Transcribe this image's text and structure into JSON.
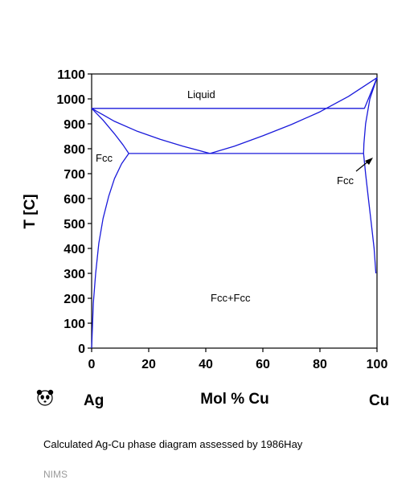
{
  "chart_data": {
    "type": "line",
    "title": "",
    "xlabel": "Mol % Cu",
    "ylabel": "T [C]",
    "element_left": "Ag",
    "element_right": "Cu",
    "xlim": [
      0,
      100
    ],
    "ylim": [
      0,
      1100
    ],
    "x_ticks": [
      0,
      20,
      40,
      60,
      80,
      100
    ],
    "y_ticks": [
      0,
      100,
      200,
      300,
      400,
      500,
      600,
      700,
      800,
      900,
      1000,
      1100
    ],
    "series_color": "#1a1adb",
    "region_labels": [
      "Liquid",
      "Fcc",
      "Fcc",
      "Fcc+Fcc"
    ],
    "series": [
      {
        "values": [
          [
            0,
            962
          ],
          [
            8,
            910
          ],
          [
            16,
            870
          ],
          [
            24,
            838
          ],
          [
            32,
            810
          ],
          [
            41.5,
            781
          ]
        ]
      },
      {
        "values": [
          [
            41.5,
            781
          ],
          [
            50,
            810
          ],
          [
            60,
            852
          ],
          [
            70,
            897
          ],
          [
            80,
            948
          ],
          [
            90,
            1010
          ],
          [
            100,
            1085
          ]
        ]
      },
      {
        "values": [
          [
            0,
            962
          ],
          [
            4,
            915
          ],
          [
            8,
            860
          ],
          [
            11,
            815
          ],
          [
            13,
            781
          ]
        ]
      },
      {
        "values": [
          [
            0,
            962
          ],
          [
            95.6,
            962
          ],
          [
            100,
            1085
          ]
        ]
      },
      {
        "values": [
          [
            13,
            781
          ],
          [
            10.5,
            740
          ],
          [
            8,
            680
          ],
          [
            6,
            610
          ],
          [
            4,
            520
          ],
          [
            2.5,
            420
          ],
          [
            1.4,
            300
          ],
          [
            0.6,
            180
          ],
          [
            0,
            0
          ]
        ]
      },
      {
        "values": [
          [
            100,
            1085
          ],
          [
            97.5,
            1000
          ],
          [
            96,
            900
          ],
          [
            95.4,
            820
          ],
          [
            95.3,
            781
          ]
        ]
      },
      {
        "values": [
          [
            95.3,
            781
          ],
          [
            96,
            700
          ],
          [
            97,
            600
          ],
          [
            98,
            500
          ],
          [
            99,
            400
          ],
          [
            99.6,
            300
          ]
        ]
      },
      {
        "values": [
          [
            13,
            781
          ],
          [
            95.3,
            781
          ]
        ]
      }
    ]
  },
  "caption": "Calculated Ag-Cu phase diagram assessed by 1986Hay",
  "footer": "NIMS",
  "logo_icon": "panda-icon"
}
